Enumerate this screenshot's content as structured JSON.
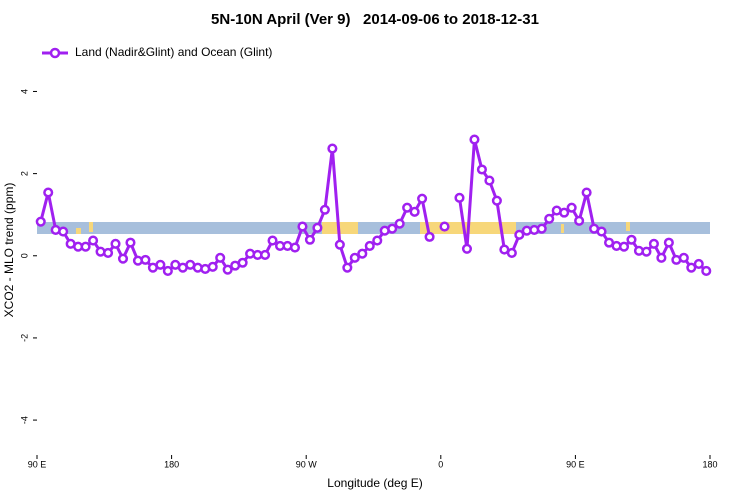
{
  "chart_data": {
    "type": "line",
    "title": "5N-10N April (Ver 9)   2014-09-06 to 2018-12-31",
    "xlabel": "Longitude (deg E)",
    "ylabel": "XCO2 - MLO trend (ppm)",
    "x": [
      92.5,
      97.5,
      102.5,
      107.5,
      112.5,
      117.5,
      122.5,
      127.5,
      132.5,
      137.5,
      142.5,
      147.5,
      152.5,
      157.5,
      162.5,
      167.5,
      172.5,
      177.5,
      182.5,
      187.5,
      192.5,
      197.5,
      202.5,
      207.5,
      212.5,
      217.5,
      222.5,
      227.5,
      232.5,
      237.5,
      242.5,
      247.5,
      252.5,
      257.5,
      262.5,
      267.5,
      272.5,
      277.5,
      282.5,
      287.5,
      292.5,
      297.5,
      302.5,
      307.5,
      312.5,
      317.5,
      322.5,
      327.5,
      332.5,
      337.5,
      342.5,
      347.5,
      352.5,
      357.5,
      362.5,
      367.5,
      372.5,
      377.5,
      382.5,
      387.5,
      392.5,
      397.5,
      402.5,
      407.5,
      412.5,
      417.5,
      422.5,
      427.5,
      432.5,
      437.5,
      442.5,
      447.5,
      452.5,
      457.5,
      462.5,
      467.5,
      472.5,
      477.5,
      482.5,
      487.5,
      492.5,
      497.5,
      502.5,
      507.5,
      512.5,
      517.5,
      522.5,
      527.5,
      532.5,
      537.5
    ],
    "series": [
      {
        "name": "Land (Nadir&Glint) and Ocean (Glint)",
        "color": "#a020f0",
        "values": [
          0.83,
          1.54,
          0.63,
          0.59,
          0.29,
          0.22,
          0.22,
          0.37,
          0.1,
          0.07,
          0.29,
          -0.07,
          0.32,
          -0.12,
          -0.1,
          -0.29,
          -0.22,
          -0.37,
          -0.22,
          -0.29,
          -0.22,
          -0.29,
          -0.32,
          -0.27,
          -0.05,
          -0.34,
          -0.24,
          -0.17,
          0.05,
          0.02,
          0.02,
          0.37,
          0.24,
          0.24,
          0.2,
          0.71,
          0.39,
          0.68,
          1.12,
          2.61,
          0.27,
          -0.29,
          -0.05,
          0.05,
          0.24,
          0.37,
          0.61,
          0.66,
          0.78,
          1.17,
          1.07,
          1.39,
          0.46,
          null,
          0.71,
          null,
          1.41,
          0.17,
          2.83,
          2.1,
          1.83,
          1.34,
          0.15,
          0.07,
          0.51,
          0.61,
          0.63,
          0.66,
          0.9,
          1.1,
          1.05,
          1.17,
          0.85,
          1.54,
          0.66,
          0.59,
          0.32,
          0.24,
          0.22,
          0.39,
          0.12,
          0.1,
          0.29,
          -0.05,
          0.32,
          -0.1,
          -0.05,
          -0.29,
          -0.2,
          -0.37
        ]
      }
    ],
    "xlim": [
      90,
      540
    ],
    "xticks": [
      {
        "value": 90,
        "label": "90 E"
      },
      180,
      {
        "value": 270,
        "label": "90 W"
      },
      {
        "value": 360,
        "label": "0"
      },
      {
        "value": 450,
        "label": "90 E"
      },
      {
        "value": 540,
        "label": "180"
      }
    ],
    "ylim": [
      -4.85,
      5.35
    ],
    "yticks": [
      -4,
      -2,
      0,
      2,
      4
    ],
    "legend": "top-left"
  }
}
